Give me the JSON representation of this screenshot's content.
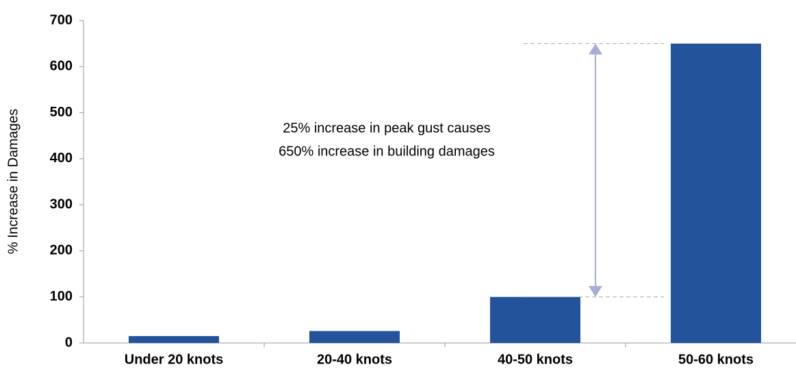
{
  "chart_data": {
    "type": "bar",
    "y_label": "% Increase in Damages",
    "annotation": [
      "25% increase in peak gust causes",
      "650% increase in building damages"
    ],
    "categories": [
      "Under 20 knots",
      "20-40 knots",
      "40-50 knots",
      "50-60 knots"
    ],
    "values": [
      15,
      26,
      100,
      650
    ],
    "color": "#23539a",
    "ylim": [
      0,
      700
    ],
    "yticks": [
      0,
      100,
      200,
      300,
      400,
      500,
      600,
      700
    ],
    "grid": false
  }
}
